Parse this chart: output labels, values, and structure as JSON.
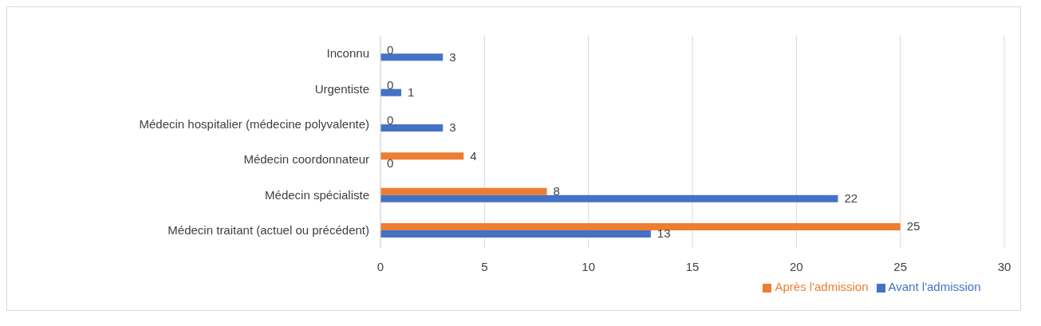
{
  "chart_data": {
    "type": "bar",
    "orientation": "horizontal",
    "categories": [
      "Inconnu",
      "Urgentiste",
      "Médecin hospitalier (médecine polyvalente)",
      "Médecin coordonnateur",
      "Médecin spécialiste",
      "Médecin traitant (actuel ou précédent)"
    ],
    "series": [
      {
        "name": "Après l'admission",
        "color": "#ed7d31",
        "values": [
          0,
          0,
          0,
          4,
          8,
          25
        ]
      },
      {
        "name": "Avant l'admission",
        "color": "#4472c4",
        "values": [
          3,
          1,
          3,
          0,
          22,
          13
        ]
      }
    ],
    "xlim": [
      0,
      30
    ],
    "xticks": [
      0,
      5,
      10,
      15,
      20,
      25,
      30
    ],
    "grid": "x",
    "legend": "bottom",
    "data_labels": true
  }
}
